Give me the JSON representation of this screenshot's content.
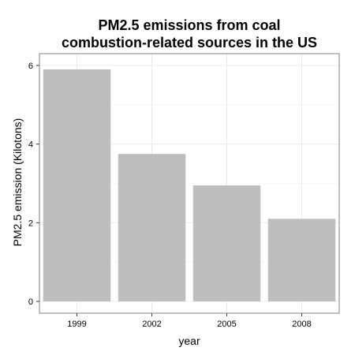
{
  "chart_data": {
    "type": "bar",
    "title_lines": [
      "PM2.5 emissions from coal",
      "combustion-related sources in the US"
    ],
    "xlabel": "year",
    "ylabel": "PM2.5 emission (Kilotons)",
    "categories": [
      "1999",
      "2002",
      "2005",
      "2008"
    ],
    "values": [
      5.9,
      3.75,
      2.95,
      2.1
    ],
    "ylim": [
      -0.3,
      6.3
    ],
    "yticks": [
      0,
      2,
      4,
      6
    ],
    "bar_color": "#bebebe",
    "grid": true,
    "legend": "none"
  }
}
